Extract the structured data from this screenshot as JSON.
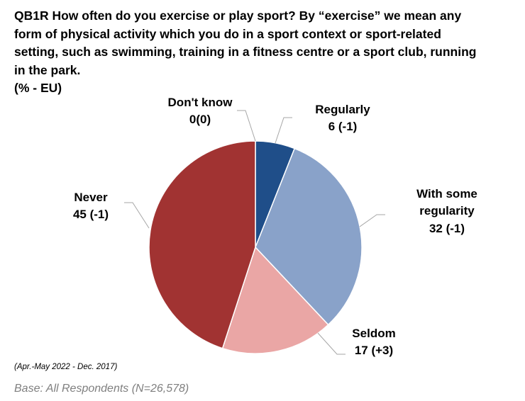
{
  "header": {
    "title_lines": [
      "QB1R How often do you exercise or play sport? By “exercise” we mean any",
      "form of physical activity which you do in a sport context or sport-related",
      "setting, such as swimming, training in a fitness centre or a sport club, running",
      "in the park.",
      "(% - EU)"
    ]
  },
  "chart_data": {
    "type": "pie",
    "title": "QB1R How often do you exercise or play sport? By “exercise” we mean any form of physical activity which you do in a sport context or sport-related setting, such as swimming, training in a fitness centre or a sport club, running in the park.",
    "unit_label": "(% - EU)",
    "slices": [
      {
        "label": "Regularly",
        "value": 6,
        "change": "(-1)",
        "value_text": "6 (-1)",
        "color": "#1f4e89"
      },
      {
        "label": "With some regularity",
        "label_lines": [
          "With some",
          "regularity"
        ],
        "value": 32,
        "change": "(-1)",
        "value_text": "32 (-1)",
        "color": "#89a2c9"
      },
      {
        "label": "Seldom",
        "value": 17,
        "change": "(+3)",
        "value_text": "17 (+3)",
        "color": "#eaa6a5"
      },
      {
        "label": "Never",
        "value": 45,
        "change": "(-1)",
        "value_text": "45 (-1)",
        "color": "#a13332"
      },
      {
        "label": "Don't know",
        "value": 0,
        "change": "(0)",
        "value_text": "0(0)",
        "color": "#7f7f7f"
      }
    ],
    "start_angle": "top",
    "direction": "clockwise",
    "legend": "none"
  },
  "footer": {
    "period_note": "(Apr.-May 2022 - Dec. 2017)",
    "base": "Base: All Respondents (N=26,578)"
  }
}
